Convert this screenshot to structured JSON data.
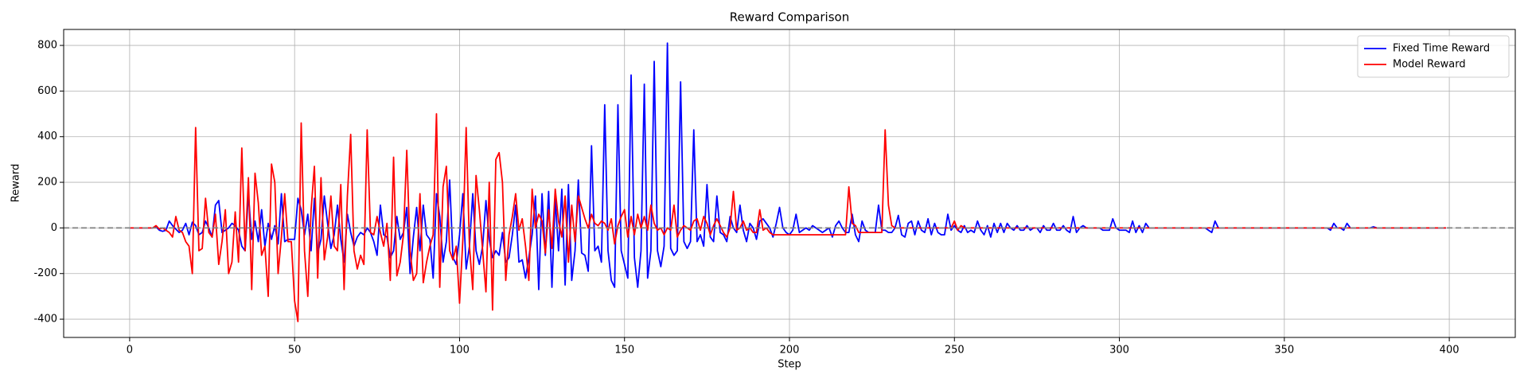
{
  "chart_data": {
    "type": "line",
    "title": "Reward Comparison",
    "x_label": "Step",
    "y_label": "Reward",
    "x": [
      0,
      1,
      2,
      3,
      4,
      5,
      6,
      7,
      8,
      9,
      10,
      11,
      12,
      13,
      14,
      15,
      16,
      17,
      18,
      19,
      20,
      21,
      22,
      23,
      24,
      25,
      26,
      27,
      28,
      29,
      30,
      31,
      32,
      33,
      34,
      35,
      36,
      37,
      38,
      39,
      40,
      41,
      42,
      43,
      44,
      45,
      46,
      47,
      48,
      49,
      50,
      51,
      52,
      53,
      54,
      55,
      56,
      57,
      58,
      59,
      60,
      61,
      62,
      63,
      64,
      65,
      66,
      67,
      68,
      69,
      70,
      71,
      72,
      73,
      74,
      75,
      76,
      77,
      78,
      79,
      80,
      81,
      82,
      83,
      84,
      85,
      86,
      87,
      88,
      89,
      90,
      91,
      92,
      93,
      94,
      95,
      96,
      97,
      98,
      99,
      100,
      101,
      102,
      103,
      104,
      105,
      106,
      107,
      108,
      109,
      110,
      111,
      112,
      113,
      114,
      115,
      116,
      117,
      118,
      119,
      120,
      121,
      122,
      123,
      124,
      125,
      126,
      127,
      128,
      129,
      130,
      131,
      132,
      133,
      134,
      135,
      136,
      137,
      138,
      139,
      140,
      141,
      142,
      143,
      144,
      145,
      146,
      147,
      148,
      149,
      150,
      151,
      152,
      153,
      154,
      155,
      156,
      157,
      158,
      159,
      160,
      161,
      162,
      163,
      164,
      165,
      166,
      167,
      168,
      169,
      170,
      171,
      172,
      173,
      174,
      175,
      176,
      177,
      178,
      179,
      180,
      181,
      182,
      183,
      184,
      185,
      186,
      187,
      188,
      189,
      190,
      191,
      192,
      193,
      194,
      195,
      196,
      197,
      198,
      199,
      200,
      201,
      202,
      203,
      204,
      205,
      206,
      207,
      208,
      209,
      210,
      211,
      212,
      213,
      214,
      215,
      216,
      217,
      218,
      219,
      220,
      221,
      222,
      223,
      224,
      225,
      226,
      227,
      228,
      229,
      230,
      231,
      232,
      233,
      234,
      235,
      236,
      237,
      238,
      239,
      240,
      241,
      242,
      243,
      244,
      245,
      246,
      247,
      248,
      249,
      250,
      251,
      252,
      253,
      254,
      255,
      256,
      257,
      258,
      259,
      260,
      261,
      262,
      263,
      264,
      265,
      266,
      267,
      268,
      269,
      270,
      271,
      272,
      273,
      274,
      275,
      276,
      277,
      278,
      279,
      280,
      281,
      282,
      283,
      284,
      285,
      286,
      287,
      288,
      289,
      290,
      291,
      292,
      293,
      294,
      295,
      296,
      297,
      298,
      299,
      300,
      301,
      302,
      303,
      304,
      305,
      306,
      307,
      308,
      309,
      310,
      311,
      312,
      313,
      314,
      315,
      316,
      317,
      318,
      319,
      320,
      321,
      322,
      323,
      324,
      325,
      326,
      327,
      328,
      329,
      330,
      331,
      332,
      333,
      334,
      335,
      336,
      337,
      338,
      339,
      340,
      341,
      342,
      343,
      344,
      345,
      346,
      347,
      348,
      349,
      350,
      351,
      352,
      353,
      354,
      355,
      356,
      357,
      358,
      359,
      360,
      361,
      362,
      363,
      364,
      365,
      366,
      367,
      368,
      369,
      370,
      371,
      372,
      373,
      374,
      375,
      376,
      377,
      378,
      379,
      380,
      381,
      382,
      383,
      384,
      385,
      386,
      387,
      388,
      389,
      390,
      391,
      392,
      393,
      394,
      395,
      396,
      397,
      398,
      399
    ],
    "series": [
      {
        "name": "Fixed Time Reward",
        "color": "#0000ff",
        "values": [
          0,
          0,
          0,
          0,
          0,
          0,
          0,
          0,
          5,
          -10,
          -15,
          -10,
          30,
          10,
          -5,
          -20,
          -10,
          20,
          -30,
          25,
          10,
          -30,
          -20,
          30,
          0,
          -40,
          100,
          120,
          -20,
          -10,
          0,
          20,
          10,
          -10,
          -80,
          -100,
          150,
          -50,
          30,
          -60,
          80,
          -80,
          20,
          -50,
          10,
          -70,
          150,
          -60,
          -50,
          -50,
          -50,
          130,
          80,
          -30,
          60,
          -100,
          130,
          -110,
          -50,
          140,
          20,
          -90,
          -30,
          100,
          -50,
          -150,
          60,
          -20,
          -80,
          -40,
          -20,
          -30,
          0,
          -20,
          -60,
          -120,
          100,
          -30,
          -40,
          -130,
          -100,
          50,
          -50,
          -20,
          90,
          -200,
          -40,
          90,
          -100,
          100,
          -30,
          -50,
          -220,
          150,
          50,
          -150,
          -60,
          210,
          -130,
          -160,
          -30,
          150,
          -180,
          -80,
          150,
          -100,
          -160,
          -80,
          120,
          -50,
          -130,
          -100,
          -120,
          -20,
          -150,
          -130,
          -30,
          100,
          -150,
          -140,
          -220,
          -130,
          -30,
          140,
          -270,
          150,
          -120,
          160,
          -260,
          130,
          -100,
          170,
          -250,
          190,
          -230,
          -100,
          210,
          -110,
          -120,
          -190,
          360,
          -100,
          -80,
          -150,
          540,
          -100,
          -230,
          -260,
          540,
          -100,
          -160,
          -220,
          670,
          -130,
          -260,
          -100,
          630,
          -220,
          -100,
          730,
          -100,
          -170,
          -80,
          810,
          -90,
          -120,
          -100,
          640,
          -60,
          -90,
          -60,
          430,
          -60,
          -30,
          -80,
          190,
          -40,
          -60,
          140,
          -20,
          -30,
          -60,
          50,
          0,
          -20,
          100,
          -10,
          -60,
          20,
          0,
          -50,
          30,
          40,
          20,
          0,
          -40,
          20,
          90,
          0,
          -20,
          -30,
          -10,
          60,
          -20,
          -10,
          0,
          -10,
          10,
          0,
          -10,
          -20,
          -10,
          0,
          -40,
          10,
          30,
          0,
          -20,
          -20,
          60,
          -30,
          -60,
          30,
          -10,
          -20,
          -20,
          -20,
          100,
          -10,
          -10,
          -20,
          -20,
          0,
          55,
          -30,
          -40,
          20,
          30,
          -30,
          30,
          -10,
          -20,
          40,
          -30,
          20,
          -20,
          -30,
          -30,
          60,
          -10,
          10,
          -10,
          -20,
          10,
          -20,
          -10,
          -20,
          30,
          -10,
          -30,
          10,
          -40,
          20,
          -20,
          20,
          -20,
          20,
          0,
          -10,
          10,
          -10,
          -10,
          10,
          -10,
          0,
          0,
          -20,
          10,
          -10,
          -10,
          20,
          -10,
          -10,
          10,
          -10,
          -20,
          50,
          -20,
          0,
          10,
          0,
          0,
          0,
          0,
          0,
          -10,
          -10,
          -10,
          40,
          0,
          -10,
          -10,
          -10,
          -20,
          30,
          -20,
          10,
          -20,
          20,
          0,
          0,
          0,
          0,
          0,
          0,
          0,
          0,
          0,
          0,
          0,
          0,
          0,
          0,
          0,
          0,
          0,
          0,
          -10,
          -20,
          30,
          0,
          0,
          0,
          0,
          0,
          0,
          0,
          0,
          0,
          0,
          0,
          0,
          0,
          0,
          0,
          0,
          0,
          0,
          0,
          0,
          0,
          0,
          0,
          0,
          0,
          0,
          0,
          0,
          0,
          0,
          0,
          0,
          0,
          0,
          -10,
          20,
          0,
          0,
          -10,
          20,
          0,
          0,
          0,
          0,
          0,
          0,
          0,
          5,
          0,
          0,
          0,
          0,
          0,
          0,
          0,
          0,
          0,
          0,
          0,
          0,
          0,
          0,
          0,
          0,
          0,
          0,
          0,
          0,
          0,
          0
        ]
      },
      {
        "name": "Model Reward",
        "color": "#ff0000",
        "values": [
          0,
          0,
          0,
          0,
          0,
          0,
          0,
          0,
          10,
          -5,
          0,
          -10,
          -20,
          -40,
          50,
          -10,
          -20,
          -60,
          -80,
          -200,
          440,
          -100,
          -90,
          130,
          -20,
          -40,
          60,
          -160,
          -60,
          80,
          -200,
          -150,
          70,
          -150,
          350,
          -100,
          220,
          -270,
          240,
          110,
          -120,
          -80,
          -300,
          280,
          200,
          -200,
          -40,
          150,
          -60,
          -60,
          -320,
          -410,
          460,
          -100,
          -300,
          80,
          270,
          -220,
          220,
          -140,
          -40,
          140,
          -80,
          -100,
          190,
          -270,
          140,
          410,
          -100,
          -180,
          -120,
          -160,
          430,
          -20,
          -30,
          50,
          -20,
          -80,
          20,
          -230,
          310,
          -210,
          -150,
          -30,
          340,
          -100,
          -230,
          -200,
          150,
          -240,
          -150,
          -80,
          -30,
          500,
          -260,
          180,
          270,
          -100,
          -140,
          -80,
          -330,
          -50,
          440,
          -80,
          -270,
          230,
          80,
          -100,
          -280,
          200,
          -360,
          300,
          330,
          200,
          -230,
          -30,
          50,
          150,
          -10,
          40,
          -80,
          -230,
          170,
          0,
          60,
          30,
          -110,
          80,
          -90,
          170,
          30,
          -40,
          140,
          -150,
          100,
          -60,
          140,
          90,
          40,
          0,
          60,
          20,
          10,
          30,
          20,
          -10,
          40,
          -70,
          10,
          50,
          80,
          -40,
          50,
          -30,
          60,
          0,
          50,
          -10,
          100,
          20,
          -10,
          0,
          -30,
          0,
          -10,
          100,
          -40,
          -10,
          10,
          0,
          -10,
          30,
          40,
          -10,
          50,
          20,
          -30,
          10,
          40,
          10,
          -20,
          -40,
          0,
          160,
          -10,
          0,
          30,
          -10,
          0,
          -20,
          -20,
          80,
          -10,
          0,
          -20,
          -30,
          -30,
          -30,
          -30,
          -30,
          -30,
          -30,
          -30,
          -30,
          -30,
          -30,
          -30,
          -30,
          -30,
          -30,
          -30,
          -30,
          -30,
          -30,
          -30,
          -30,
          -30,
          -30,
          180,
          20,
          10,
          -20,
          -20,
          -20,
          -20,
          -20,
          -20,
          -20,
          -20,
          430,
          100,
          10,
          0,
          0,
          0,
          0,
          0,
          0,
          0,
          0,
          0,
          0,
          0,
          0,
          0,
          0,
          0,
          0,
          0,
          0,
          30,
          -10,
          10,
          0,
          0,
          0,
          0,
          0,
          0,
          0,
          0,
          0,
          0,
          0,
          0,
          0,
          0,
          0,
          0,
          0,
          0,
          0,
          0,
          0,
          0,
          0,
          0,
          0,
          0,
          0,
          0,
          0,
          0,
          0,
          0,
          0,
          0,
          0,
          0,
          0,
          0,
          0,
          0,
          0,
          0,
          0,
          0,
          0,
          0,
          0,
          0,
          0,
          0,
          0,
          0,
          0,
          0,
          0,
          0,
          0,
          0,
          0,
          0,
          0,
          0,
          0,
          0,
          0,
          0,
          0,
          0,
          0,
          0,
          0,
          0,
          0,
          0,
          0,
          0,
          0,
          0,
          0,
          0,
          0,
          0,
          0,
          0,
          0,
          0,
          0,
          0,
          0,
          0,
          0,
          0,
          0,
          0,
          0,
          0,
          0,
          0,
          0,
          0,
          0,
          0,
          0,
          0,
          0,
          0,
          0,
          0,
          0,
          0,
          0,
          0,
          0,
          0,
          0,
          0,
          0,
          0,
          0,
          0,
          0,
          0,
          0,
          0,
          0,
          0,
          0,
          0,
          0,
          0,
          0,
          0,
          0,
          0,
          0,
          0,
          0,
          0,
          0,
          0,
          0,
          0,
          0,
          0,
          0,
          0,
          0
        ]
      }
    ],
    "xlim": [
      -20,
      420
    ],
    "xticks": [
      0,
      50,
      100,
      150,
      200,
      250,
      300,
      350,
      400
    ],
    "ylim": [
      -480,
      870
    ],
    "yticks": [
      -400,
      -200,
      0,
      200,
      400,
      600,
      800
    ],
    "hline": 0,
    "grid": true,
    "legend": "upper right"
  }
}
